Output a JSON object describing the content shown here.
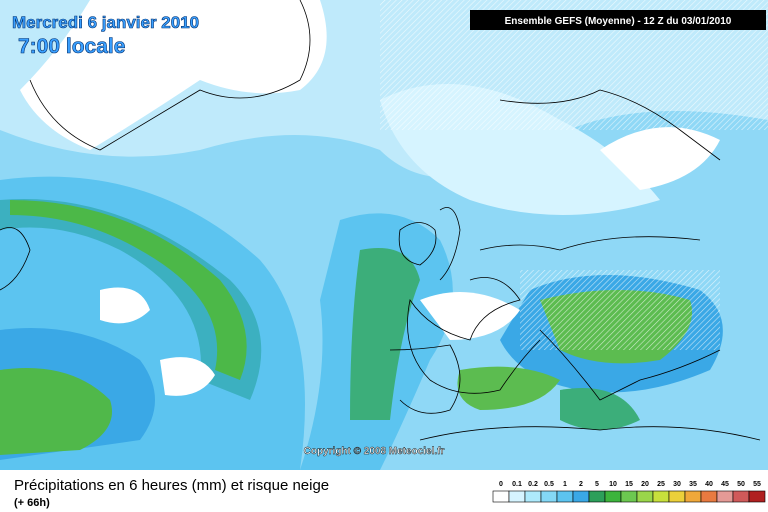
{
  "header": {
    "date": "Mercredi 6 janvier 2010",
    "time": "7:00 locale",
    "model": "Ensemble GEFS (Moyenne)  - 12 Z du 03/01/2010",
    "copyright": "Copyright © 2008 Meteociel.fr"
  },
  "footer": {
    "title": "Précipitations en 6 heures (mm) et risque neige",
    "lead": "(+ 66h)"
  },
  "legend": {
    "labels": [
      "0",
      "0.1",
      "0.2",
      "0.5",
      "1",
      "2",
      "5",
      "10",
      "15",
      "20",
      "25",
      "30",
      "35",
      "40",
      "45",
      "50",
      "55"
    ],
    "colors": [
      "#ffffff",
      "#d6f4ff",
      "#aeeafc",
      "#84d8f6",
      "#5cc4f0",
      "#3aa8e6",
      "#2c9f5a",
      "#3cb43c",
      "#6cc850",
      "#9ad64a",
      "#c8e03c",
      "#ecd03a",
      "#f0a83a",
      "#e87a40",
      "#e49a96",
      "#d05a5a",
      "#b02020"
    ]
  }
}
